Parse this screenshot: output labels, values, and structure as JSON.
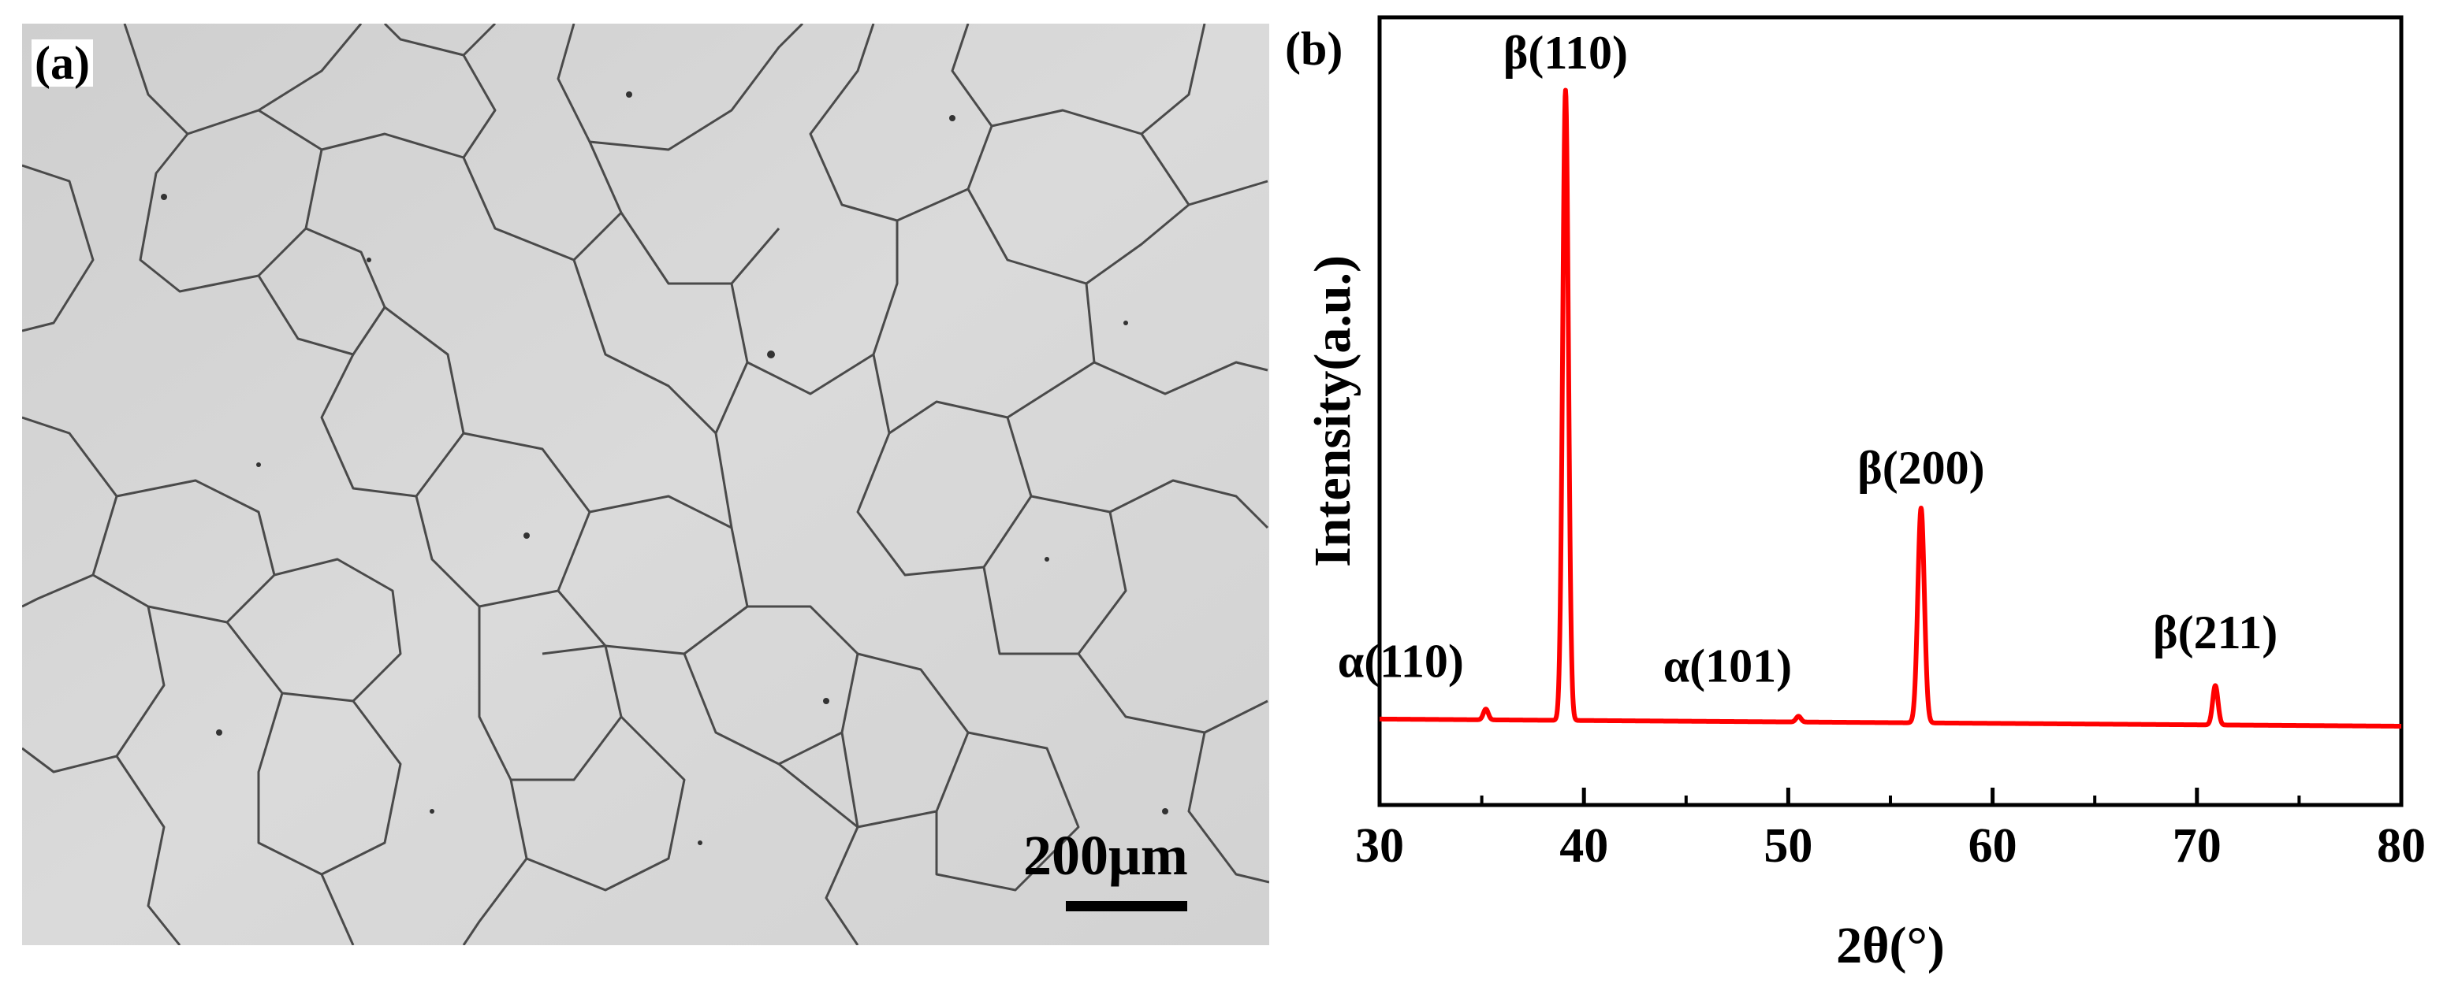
{
  "panel_a": {
    "label": "(a)",
    "scale_bar": "200μm",
    "micrograph": {
      "colors": {
        "background": "#d6d6d6",
        "boundaries": "#4a4a4a"
      }
    }
  },
  "panel_b": {
    "label": "(b)"
  },
  "chart_data": {
    "type": "line",
    "title": "",
    "xlabel": "2θ(°)",
    "ylabel": "Intensity(a.u.)",
    "xlim": [
      30,
      80
    ],
    "ylim": [
      0,
      1.1
    ],
    "x_ticks": [
      30,
      40,
      50,
      60,
      70,
      80
    ],
    "y_ticks_shown": false,
    "grid": false,
    "legend": "none",
    "series": [
      {
        "color": "#ff0000",
        "baseline": 0.12,
        "peaks": [
          {
            "x": 35.2,
            "y": 0.135,
            "label": "α(110)"
          },
          {
            "x": 39.1,
            "y": 1.0,
            "label": "β(110)"
          },
          {
            "x": 50.5,
            "y": 0.128,
            "label": "α(101)"
          },
          {
            "x": 56.5,
            "y": 0.42,
            "label": "β(200)"
          },
          {
            "x": 70.9,
            "y": 0.175,
            "label": "β(211)"
          }
        ]
      }
    ]
  }
}
